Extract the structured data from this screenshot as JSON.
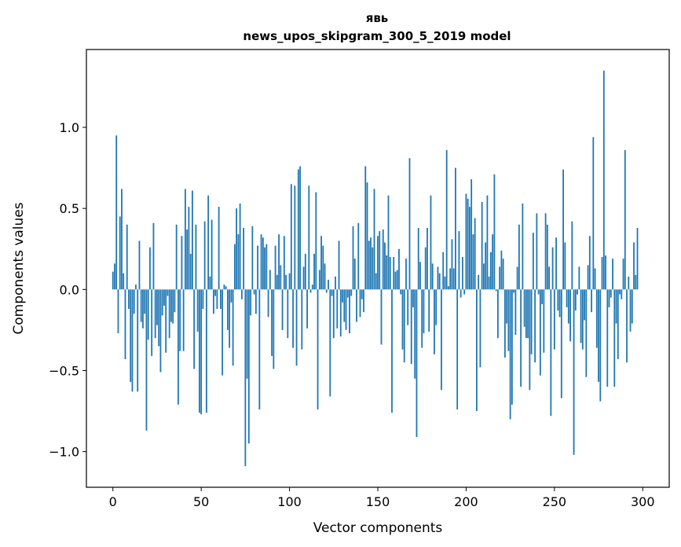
{
  "chart_data": {
    "type": "bar",
    "title_line1": "явь",
    "title_line2": "news_upos_skipgram_300_5_2019 model",
    "xlabel": "Vector components",
    "ylabel": "Components values",
    "xlim": [
      -15,
      315
    ],
    "ylim": [
      -1.22,
      1.48
    ],
    "x_ticks": [
      0,
      50,
      100,
      150,
      200,
      250,
      300
    ],
    "x_tick_labels": [
      "0",
      "50",
      "100",
      "150",
      "200",
      "250",
      "300"
    ],
    "y_ticks": [
      -1.0,
      -0.5,
      0.0,
      0.5,
      1.0
    ],
    "y_tick_labels": [
      "−1.0",
      "−0.5",
      "0.0",
      "0.5",
      "1.0"
    ],
    "bar_color": "#1f77b4",
    "series": [
      {
        "name": "components",
        "x_start": 0,
        "values": [
          0.11,
          0.16,
          0.95,
          -0.27,
          0.45,
          0.62,
          0.1,
          -0.43,
          0.4,
          -0.12,
          -0.57,
          -0.63,
          -0.15,
          0.03,
          -0.63,
          0.3,
          -0.2,
          -0.24,
          -0.15,
          -0.87,
          -0.31,
          0.26,
          -0.41,
          0.41,
          -0.3,
          -0.22,
          -0.35,
          -0.51,
          -0.16,
          -0.1,
          -0.39,
          -0.04,
          -0.3,
          -0.2,
          -0.21,
          -0.14,
          0.4,
          -0.71,
          -0.38,
          0.33,
          -0.38,
          0.62,
          0.37,
          0.51,
          0.22,
          0.61,
          -0.49,
          0.4,
          -0.26,
          -0.76,
          -0.77,
          -0.12,
          0.42,
          -0.76,
          0.58,
          0.08,
          0.43,
          -0.15,
          -0.04,
          -0.12,
          0.51,
          -0.12,
          -0.53,
          0.03,
          0.02,
          -0.25,
          -0.36,
          -0.08,
          -0.47,
          0.28,
          0.5,
          0.34,
          0.53,
          -0.06,
          0.38,
          -1.09,
          -0.55,
          -0.95,
          -0.16,
          0.39,
          -0.03,
          -0.15,
          0.27,
          -0.74,
          0.34,
          0.32,
          0.26,
          0.28,
          -0.17,
          0.12,
          -0.41,
          -0.49,
          0.27,
          0.09,
          0.34,
          0.15,
          -0.25,
          0.33,
          0.09,
          -0.3,
          0.1,
          0.65,
          -0.36,
          0.64,
          -0.47,
          0.74,
          0.76,
          -0.37,
          0.14,
          0.22,
          -0.24,
          0.64,
          -0.02,
          0.03,
          0.22,
          0.6,
          -0.74,
          0.12,
          0.33,
          0.27,
          0.16,
          -0.02,
          0.06,
          -0.66,
          -0.04,
          -0.3,
          0.08,
          -0.24,
          0.3,
          -0.29,
          -0.08,
          -0.2,
          -0.25,
          -0.05,
          -0.27,
          -0.04,
          0.39,
          0.19,
          -0.2,
          0.41,
          -0.17,
          -0.06,
          -0.14,
          0.76,
          0.66,
          0.3,
          0.32,
          0.26,
          0.62,
          0.1,
          0.33,
          0.36,
          -0.34,
          0.37,
          0.29,
          0.21,
          0.58,
          0.2,
          -0.76,
          0.2,
          0.11,
          0.12,
          0.25,
          -0.03,
          -0.37,
          -0.45,
          0.19,
          -0.22,
          0.81,
          -0.46,
          -0.11,
          -0.55,
          -0.91,
          0.38,
          0.17,
          -0.36,
          -0.27,
          0.26,
          0.38,
          -0.26,
          0.58,
          0.16,
          -0.4,
          -0.22,
          0.14,
          0.1,
          -0.62,
          0.23,
          0.08,
          0.86,
          0.02,
          0.13,
          0.31,
          0.13,
          0.75,
          -0.74,
          0.36,
          -0.05,
          0.2,
          -0.03,
          0.59,
          0.56,
          0.51,
          0.68,
          0.34,
          0.44,
          -0.75,
          0.09,
          -0.48,
          0.54,
          0.16,
          0.29,
          0.58,
          0.08,
          0.23,
          0.34,
          0.71,
          -0.01,
          -0.3,
          0.14,
          0.24,
          0.19,
          -0.42,
          -0.21,
          -0.38,
          -0.8,
          -0.71,
          -0.02,
          -0.28,
          0.14,
          0.4,
          -0.6,
          0.53,
          -0.23,
          -0.3,
          -0.3,
          -0.62,
          -0.4,
          0.35,
          -0.45,
          0.47,
          -0.03,
          -0.53,
          -0.09,
          -0.39,
          0.47,
          0.4,
          0.14,
          -0.78,
          0.26,
          -0.37,
          0.32,
          -0.13,
          -0.17,
          -0.67,
          0.74,
          0.29,
          -0.11,
          -0.21,
          -0.32,
          0.42,
          -1.02,
          -0.13,
          -0.03,
          0.14,
          -0.33,
          -0.37,
          -0.19,
          -0.54,
          0.15,
          0.33,
          -0.14,
          0.94,
          0.13,
          -0.36,
          -0.57,
          -0.69,
          0.2,
          1.35,
          0.21,
          -0.6,
          -0.11,
          -0.05,
          0.19,
          -0.6,
          -0.21,
          -0.43,
          -0.03,
          -0.06,
          0.19,
          0.86,
          -0.45,
          0.08,
          -0.26,
          -0.21,
          0.29,
          0.09,
          0.38
        ]
      }
    ]
  }
}
